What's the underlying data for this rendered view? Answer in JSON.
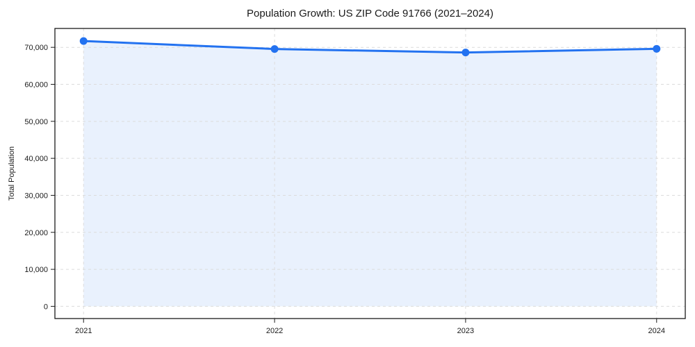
{
  "chart_data": {
    "type": "area",
    "title": "Population Growth: US ZIP Code 91766 (2021–2024)",
    "xlabel": "",
    "ylabel": "Total Population",
    "categories": [
      2021,
      2022,
      2023,
      2024
    ],
    "x_tick_labels": [
      "2021",
      "2022",
      "2023",
      "2024"
    ],
    "series": [
      {
        "name": "Total Population",
        "values": [
          71700,
          69550,
          68600,
          69600
        ]
      }
    ],
    "y_ticks": [
      0,
      10000,
      20000,
      30000,
      40000,
      50000,
      60000,
      70000
    ],
    "y_tick_labels": [
      "0",
      "10,000",
      "20,000",
      "30,000",
      "40,000",
      "50,000",
      "60,000",
      "70,000"
    ],
    "xlim": [
      2020.85,
      2024.15
    ],
    "ylim": [
      -3300,
      75100
    ],
    "grid": true,
    "grid_style": "dashed",
    "fill_to_zero": true,
    "legend": "none",
    "colors": {
      "line": "#2372f0",
      "marker": "#2372f0",
      "fill": "#e9f1fd",
      "grid": "#dcdcdc",
      "spine": "#1a1a1a",
      "text": "#1a1a1a",
      "background": "#ffffff"
    }
  }
}
